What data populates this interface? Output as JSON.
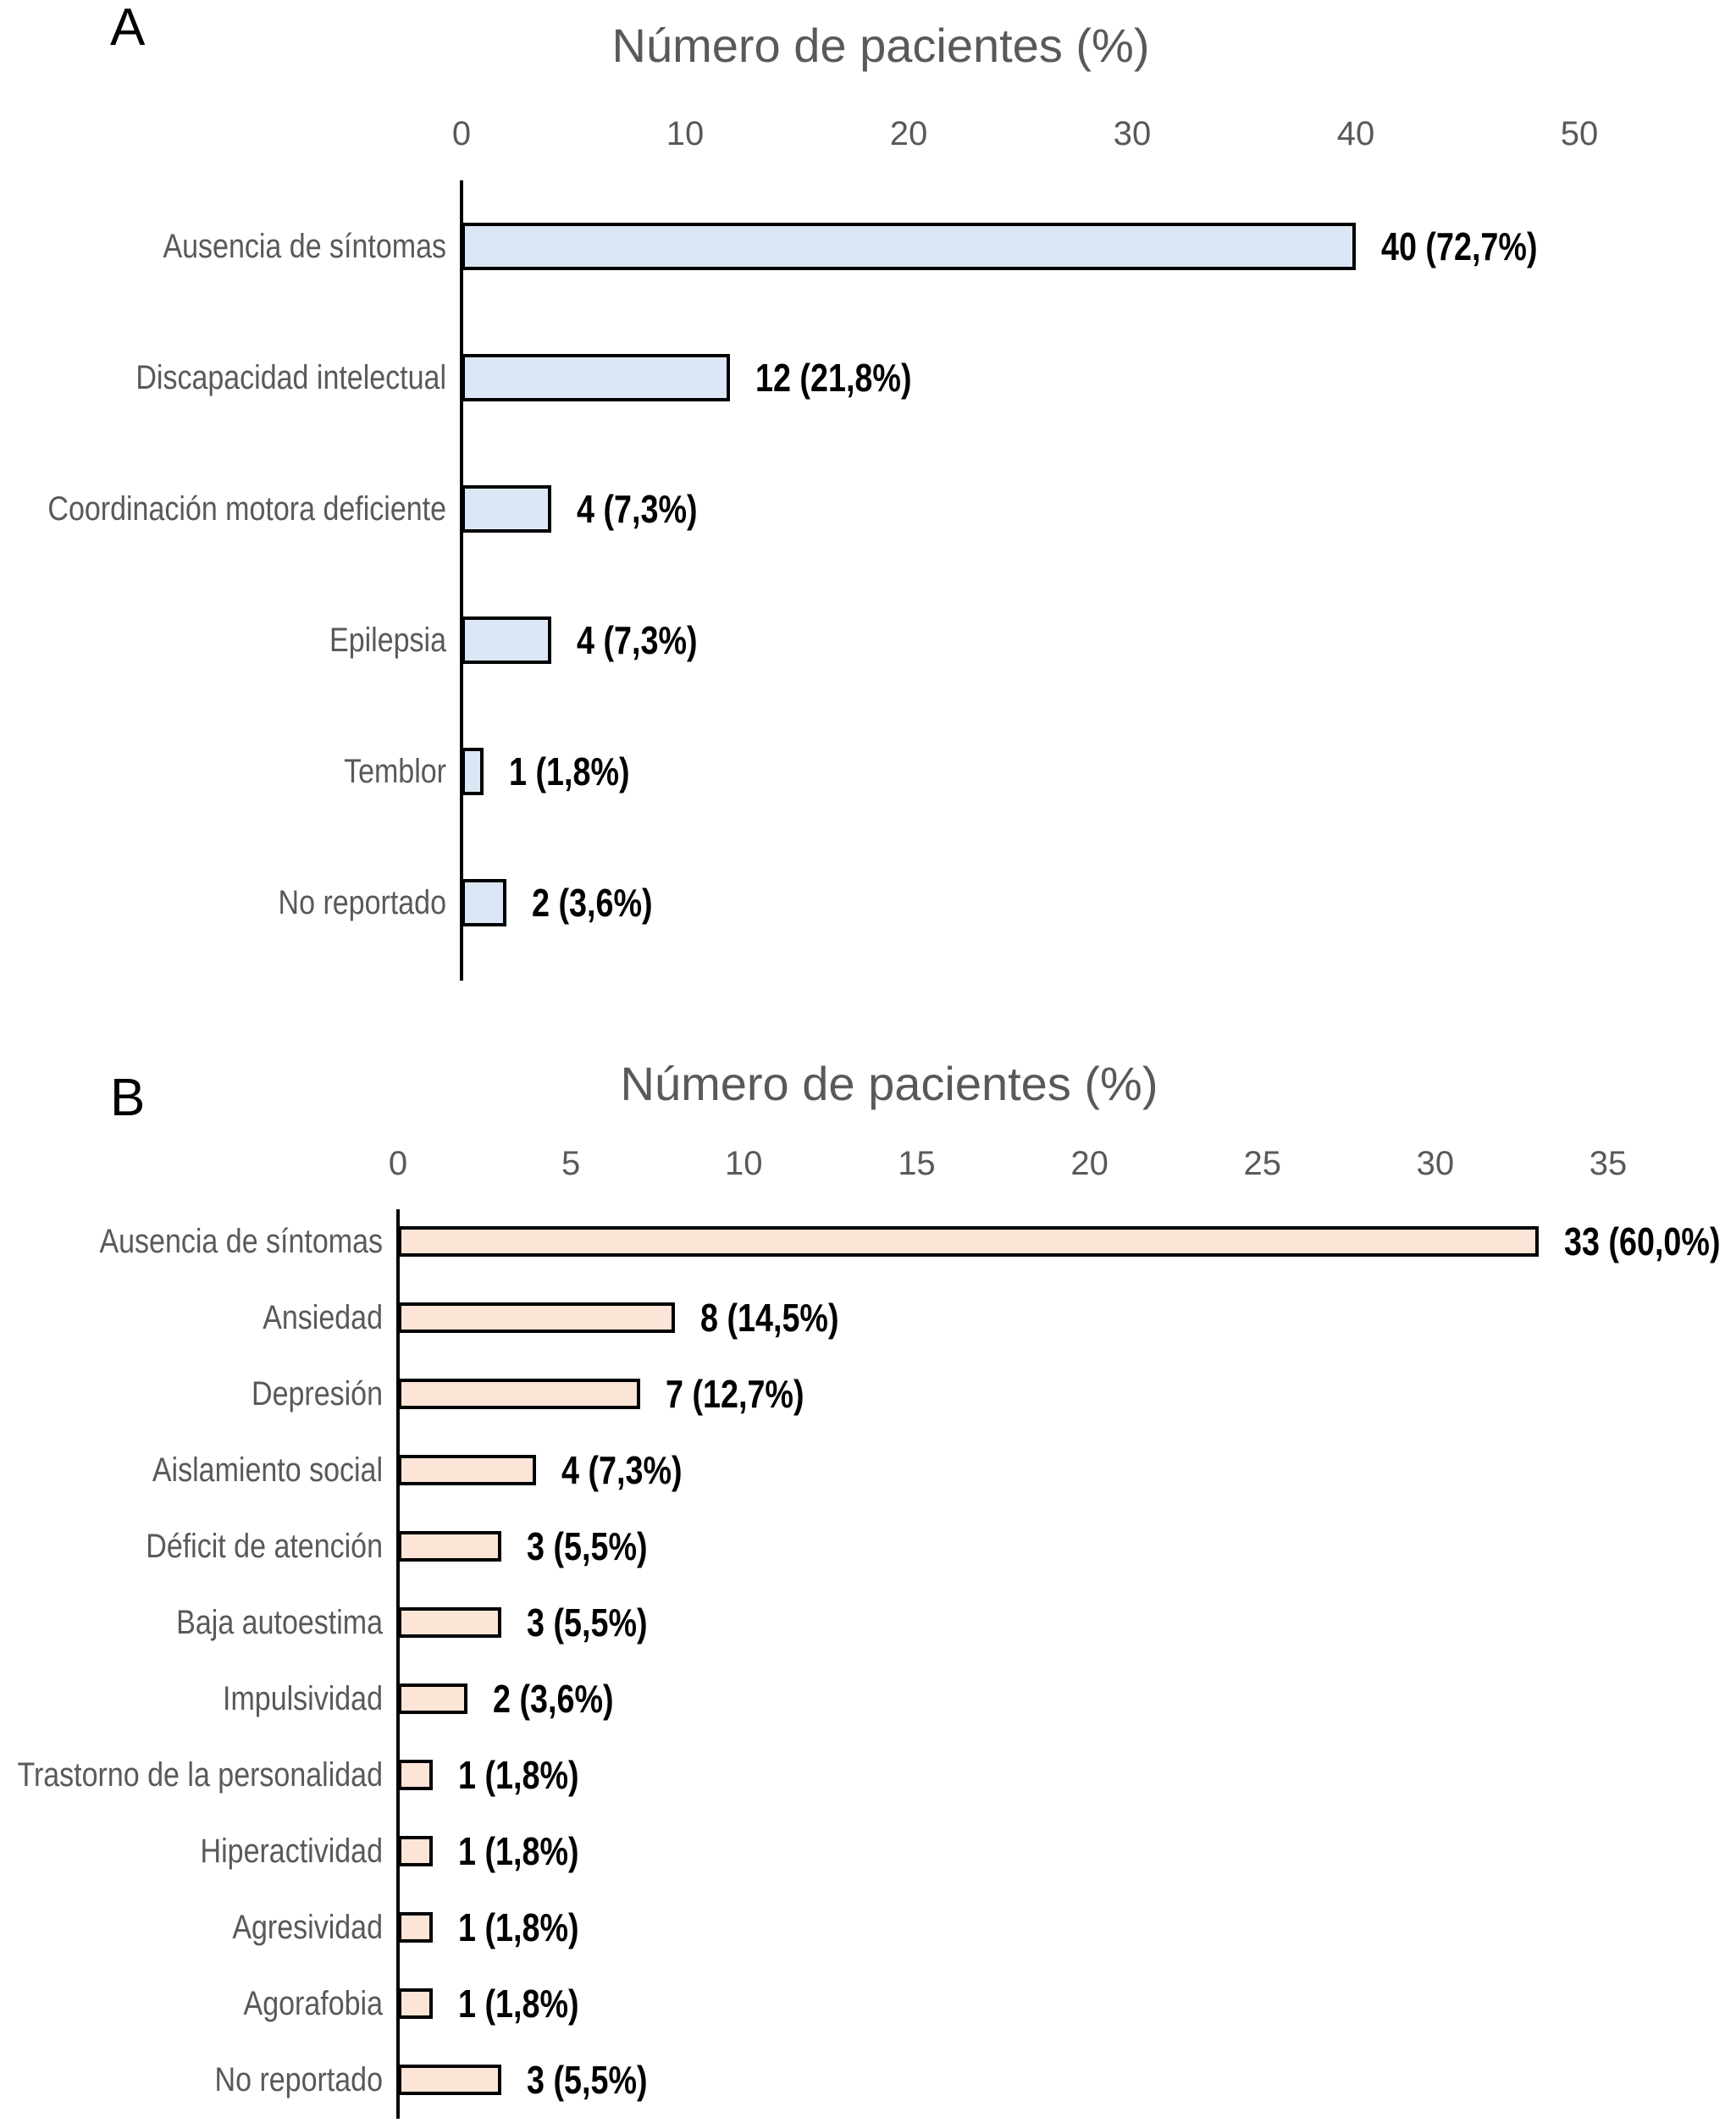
{
  "figure_title_a": "Número de pacientes (%)",
  "figure_title_b": "Número de pacientes (%)",
  "chart_data": [
    {
      "type": "bar",
      "orientation": "horizontal",
      "panel_letter": "A",
      "title": "Número de pacientes (%)",
      "categories": [
        "Ausencia de síntomas",
        "Discapacidad intelectual",
        "Coordinación motora deficiente",
        "Epilepsia",
        "Temblor",
        "No reportado"
      ],
      "values": [
        40,
        12,
        4,
        4,
        1,
        2
      ],
      "percentages": [
        72.7,
        21.8,
        7.3,
        7.3,
        1.8,
        3.6
      ],
      "data_labels": [
        "40 (72,7%)",
        "12 (21,8%)",
        "4 (7,3%)",
        "4 (7,3%)",
        "1 (1,8%)",
        "2 (3,6%)"
      ],
      "xlabel": "Número de pacientes (%)",
      "ylabel": "",
      "xlim": [
        0,
        50
      ],
      "x_ticks": [
        0,
        10,
        20,
        30,
        40,
        50
      ],
      "x_tick_labels": [
        "0",
        "10",
        "20",
        "30",
        "40",
        "50"
      ],
      "grid": false,
      "legend": null,
      "bar_fill_color": "#dbe7f4",
      "bar_border_color": "#000000",
      "axis_color": "#000000",
      "category_label_color": "#595959",
      "tick_label_color": "#595959",
      "title_color": "#595959",
      "value_label_color": "#000000"
    },
    {
      "type": "bar",
      "orientation": "horizontal",
      "panel_letter": "B",
      "title": "Número de pacientes (%)",
      "categories": [
        "Ausencia de síntomas",
        "Ansiedad",
        "Depresión",
        "Aislamiento social",
        "Déficit de atención",
        "Baja autoestima",
        "Impulsividad",
        "Trastorno de la personalidad",
        "Hiperactividad",
        "Agresividad",
        "Agorafobia",
        "No reportado"
      ],
      "values": [
        33,
        8,
        7,
        4,
        3,
        3,
        2,
        1,
        1,
        1,
        1,
        3
      ],
      "percentages": [
        60.0,
        14.5,
        12.7,
        7.3,
        5.5,
        5.5,
        3.6,
        1.8,
        1.8,
        1.8,
        1.8,
        5.5
      ],
      "data_labels": [
        "33 (60,0%)",
        "8 (14,5%)",
        "7 (12,7%)",
        "4 (7,3%)",
        "3 (5,5%)",
        "3 (5,5%)",
        "2 (3,6%)",
        "1 (1,8%)",
        "1 (1,8%)",
        "1 (1,8%)",
        "1 (1,8%)",
        "3 (5,5%)"
      ],
      "xlabel": "Número de pacientes (%)",
      "ylabel": "",
      "xlim": [
        0,
        35
      ],
      "x_ticks": [
        0,
        5,
        10,
        15,
        20,
        25,
        30,
        35
      ],
      "x_tick_labels": [
        "0",
        "5",
        "10",
        "15",
        "20",
        "25",
        "30",
        "35"
      ],
      "grid": false,
      "legend": null,
      "bar_fill_color": "#fce4d6",
      "bar_border_color": "#000000",
      "axis_color": "#000000",
      "category_label_color": "#595959",
      "tick_label_color": "#595959",
      "title_color": "#595959",
      "value_label_color": "#000000"
    }
  ]
}
